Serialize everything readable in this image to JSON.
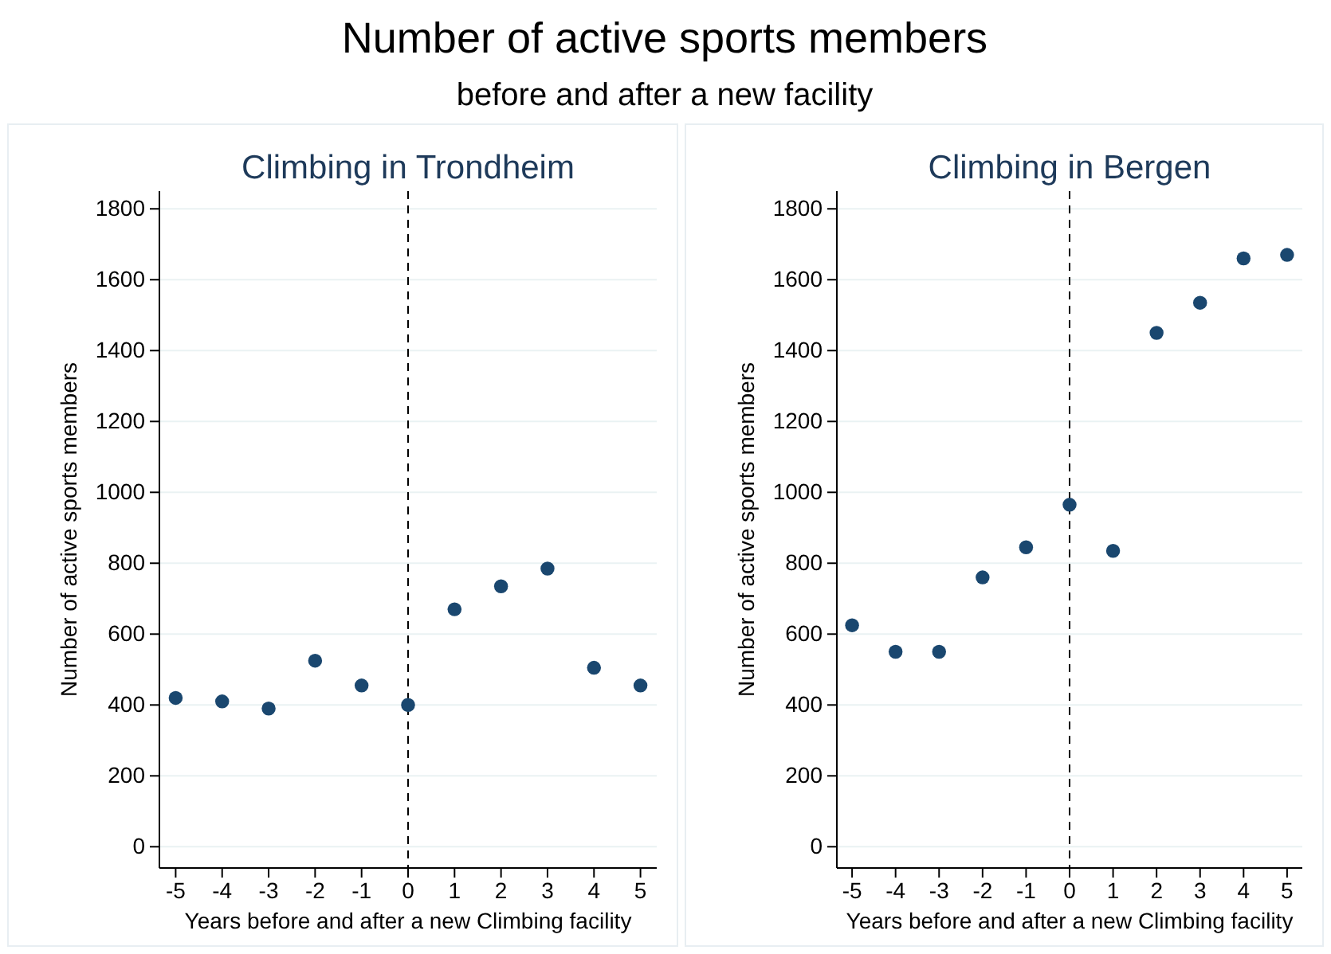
{
  "chart_data": [
    {
      "type": "scatter",
      "title": "Climbing in Trondheim",
      "annotations": [
        "Number of active sports members",
        "before and after a new facility"
      ],
      "xlabel": "Years before and after a new Climbing facility",
      "ylabel": "Number of active sports members",
      "x": [
        -5,
        -4,
        -3,
        -2,
        -1,
        0,
        1,
        2,
        3,
        4,
        5
      ],
      "series": [
        {
          "color": "#1a476f",
          "values": [
            420,
            410,
            390,
            525,
            455,
            400,
            670,
            735,
            785,
            505,
            455
          ]
        }
      ],
      "xlim": [
        -5.35,
        5.35
      ],
      "ylim": [
        -60,
        1850
      ],
      "xticks": [
        -5,
        -4,
        -3,
        -2,
        -1,
        0,
        1,
        2,
        3,
        4,
        5
      ],
      "yticks": [
        0,
        200,
        400,
        600,
        800,
        1000,
        1200,
        1400,
        1600,
        1800
      ],
      "grid": "y",
      "marker": "circle",
      "ref_lines": [
        {
          "axis": "x",
          "value": 0,
          "color": "#000000",
          "line_style": "dashed"
        }
      ]
    },
    {
      "type": "scatter",
      "title": "Climbing in Bergen",
      "xlabel": "Years before and after a new Climbing facility",
      "ylabel": "Number of active sports members",
      "x": [
        -5,
        -4,
        -3,
        -2,
        -1,
        0,
        1,
        2,
        3,
        4,
        5
      ],
      "series": [
        {
          "color": "#1a476f",
          "values": [
            625,
            550,
            550,
            760,
            845,
            965,
            835,
            1450,
            1535,
            1660,
            1670
          ]
        }
      ],
      "xlim": [
        -5.35,
        5.35
      ],
      "ylim": [
        -60,
        1850
      ],
      "xticks": [
        -5,
        -4,
        -3,
        -2,
        -1,
        0,
        1,
        2,
        3,
        4,
        5
      ],
      "yticks": [
        0,
        200,
        400,
        600,
        800,
        1000,
        1200,
        1400,
        1600,
        1800
      ],
      "grid": "y",
      "marker": "circle",
      "ref_lines": [
        {
          "axis": "x",
          "value": 0,
          "color": "#000000",
          "line_style": "dashed"
        }
      ]
    }
  ]
}
